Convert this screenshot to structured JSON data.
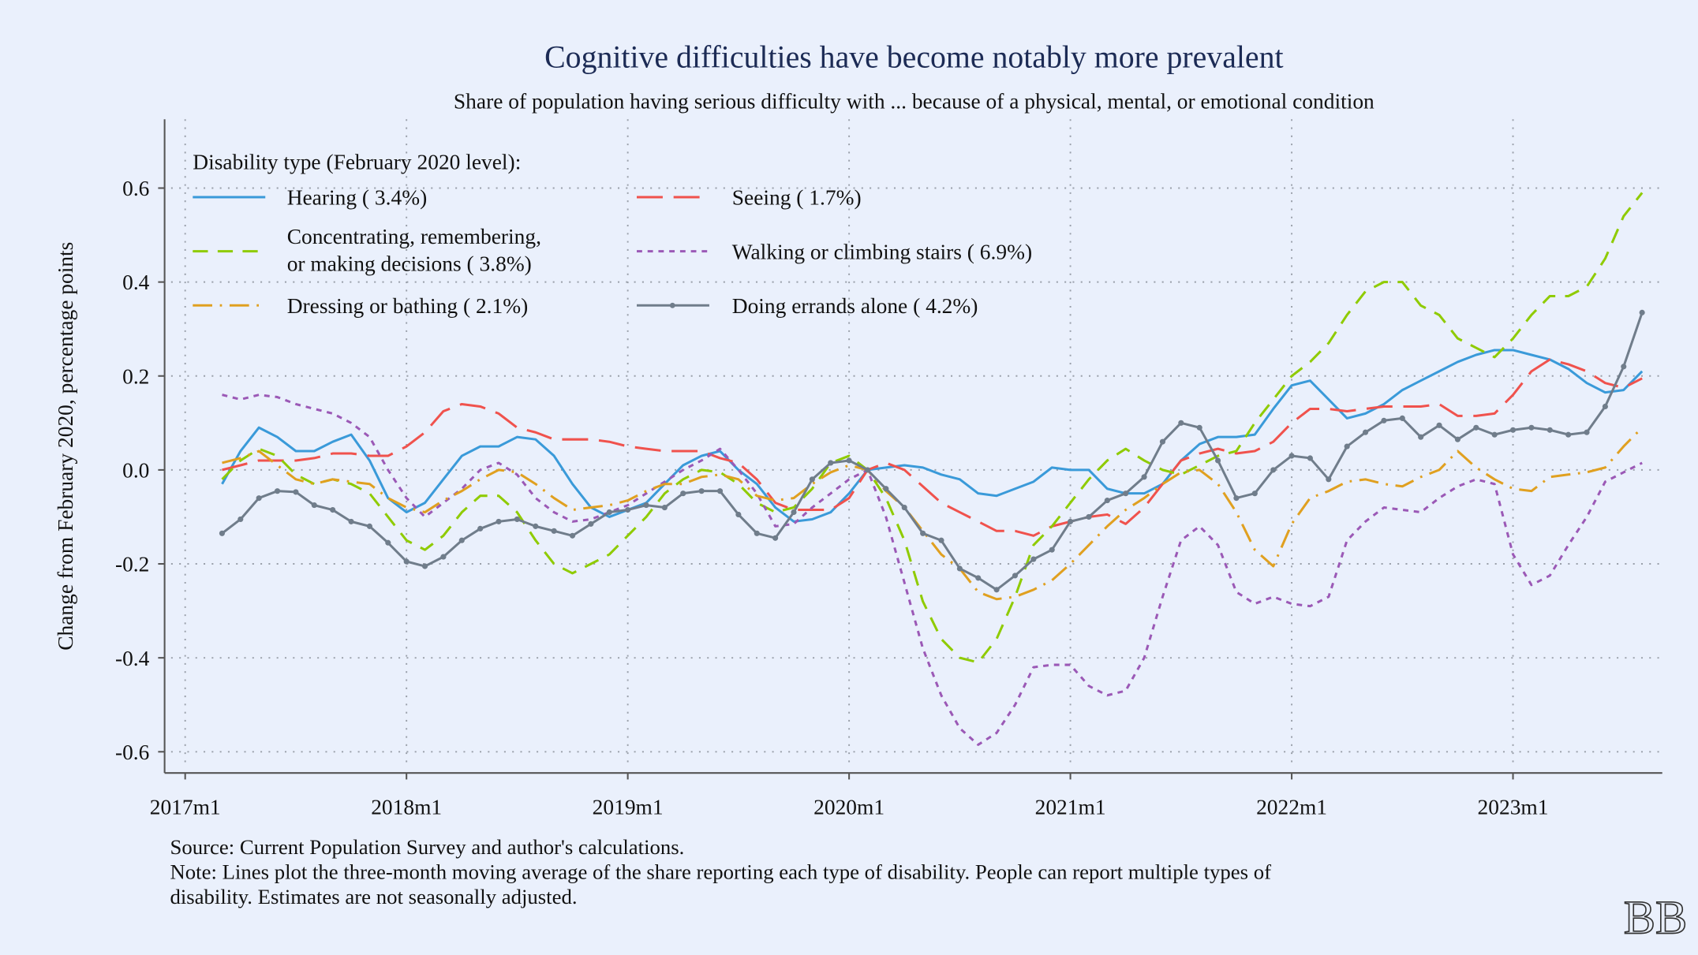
{
  "chart_data": {
    "type": "line",
    "title": "Cognitive difficulties have become notably more prevalent",
    "subtitle": "Share of population having serious difficulty with ... because of a physical, mental, or emotional condition",
    "ylabel": "Change from February 2020, percentage points",
    "xlabel": "",
    "ylim": [
      -0.65,
      0.75
    ],
    "yticks": [
      "0.6",
      "0.4",
      "0.2",
      "0.0",
      "-0.2",
      "-0.4",
      "-0.6"
    ],
    "ytick_values": [
      0.6,
      0.4,
      0.2,
      0.0,
      -0.2,
      -0.4,
      -0.6
    ],
    "xticks": [
      "2017m1",
      "2018m1",
      "2019m1",
      "2020m1",
      "2021m1",
      "2022m1",
      "2023m1"
    ],
    "grid": true,
    "legend_title": "Disability type (February 2020 level):",
    "legend_placement": "top-left",
    "x": [
      "2017m3",
      "2017m4",
      "2017m5",
      "2017m6",
      "2017m7",
      "2017m8",
      "2017m9",
      "2017m10",
      "2017m11",
      "2017m12",
      "2018m1",
      "2018m2",
      "2018m3",
      "2018m4",
      "2018m5",
      "2018m6",
      "2018m7",
      "2018m8",
      "2018m9",
      "2018m10",
      "2018m11",
      "2018m12",
      "2019m1",
      "2019m2",
      "2019m3",
      "2019m4",
      "2019m5",
      "2019m6",
      "2019m7",
      "2019m8",
      "2019m9",
      "2019m10",
      "2019m11",
      "2019m12",
      "2020m1",
      "2020m2",
      "2020m3",
      "2020m4",
      "2020m5",
      "2020m6",
      "2020m7",
      "2020m8",
      "2020m9",
      "2020m10",
      "2020m11",
      "2020m12",
      "2021m1",
      "2021m2",
      "2021m3",
      "2021m4",
      "2021m5",
      "2021m6",
      "2021m7",
      "2021m8",
      "2021m9",
      "2021m10",
      "2021m11",
      "2021m12",
      "2022m1",
      "2022m2",
      "2022m3",
      "2022m4",
      "2022m5",
      "2022m6",
      "2022m7",
      "2022m8",
      "2022m9",
      "2022m10",
      "2022m11",
      "2022m12",
      "2023m1",
      "2023m2",
      "2023m3",
      "2023m4",
      "2023m5",
      "2023m6",
      "2023m7",
      "2023m8"
    ],
    "series": [
      {
        "name": "Hearing ( 3.4%)",
        "color": "#3a9ad9",
        "style": "solid",
        "values": [
          -0.03,
          0.04,
          0.09,
          0.07,
          0.04,
          0.04,
          0.06,
          0.075,
          0.02,
          -0.06,
          -0.09,
          -0.07,
          -0.02,
          0.03,
          0.05,
          0.05,
          0.07,
          0.065,
          0.03,
          -0.03,
          -0.08,
          -0.1,
          -0.085,
          -0.07,
          -0.03,
          0.01,
          0.03,
          0.04,
          0.0,
          -0.03,
          -0.08,
          -0.11,
          -0.105,
          -0.09,
          -0.05,
          0.0,
          0.005,
          0.01,
          0.005,
          -0.01,
          -0.02,
          -0.05,
          -0.055,
          -0.04,
          -0.025,
          0.005,
          0.0,
          0.0,
          -0.04,
          -0.05,
          -0.05,
          -0.03,
          0.02,
          0.055,
          0.07,
          0.07,
          0.075,
          0.13,
          0.18,
          0.19,
          0.15,
          0.11,
          0.12,
          0.14,
          0.17,
          0.19,
          0.21,
          0.23,
          0.245,
          0.255,
          0.255,
          0.245,
          0.235,
          0.215,
          0.185,
          0.165,
          0.17,
          0.21
        ]
      },
      {
        "name": "Seeing ( 1.7%)",
        "color": "#f0524d",
        "style": "longdash",
        "values": [
          0.0,
          0.01,
          0.02,
          0.02,
          0.02,
          0.025,
          0.035,
          0.035,
          0.03,
          0.03,
          0.05,
          0.08,
          0.125,
          0.14,
          0.135,
          0.12,
          0.09,
          0.08,
          0.065,
          0.065,
          0.065,
          0.06,
          0.05,
          0.045,
          0.04,
          0.04,
          0.04,
          0.025,
          0.015,
          -0.02,
          -0.07,
          -0.085,
          -0.085,
          -0.085,
          -0.06,
          0.0,
          0.015,
          0.0,
          -0.035,
          -0.07,
          -0.09,
          -0.11,
          -0.13,
          -0.13,
          -0.14,
          -0.12,
          -0.11,
          -0.1,
          -0.095,
          -0.115,
          -0.08,
          -0.03,
          0.02,
          0.035,
          0.045,
          0.035,
          0.04,
          0.06,
          0.1,
          0.13,
          0.13,
          0.125,
          0.13,
          0.135,
          0.135,
          0.135,
          0.14,
          0.115,
          0.115,
          0.12,
          0.16,
          0.21,
          0.235,
          0.225,
          0.21,
          0.185,
          0.175,
          0.195
        ]
      },
      {
        "name": "Concentrating, remembering, or making decisions ( 3.8%)",
        "color": "#8fcb00",
        "style": "dash",
        "values": [
          -0.02,
          0.02,
          0.045,
          0.03,
          -0.01,
          -0.03,
          -0.02,
          -0.03,
          -0.05,
          -0.1,
          -0.15,
          -0.17,
          -0.14,
          -0.09,
          -0.055,
          -0.055,
          -0.09,
          -0.15,
          -0.2,
          -0.22,
          -0.2,
          -0.18,
          -0.14,
          -0.1,
          -0.05,
          -0.02,
          0.0,
          -0.005,
          -0.03,
          -0.07,
          -0.09,
          -0.08,
          -0.04,
          0.015,
          0.03,
          0.0,
          -0.06,
          -0.15,
          -0.28,
          -0.36,
          -0.4,
          -0.41,
          -0.36,
          -0.27,
          -0.16,
          -0.12,
          -0.07,
          -0.02,
          0.02,
          0.045,
          0.02,
          0.0,
          -0.01,
          0.01,
          0.03,
          0.04,
          0.1,
          0.15,
          0.2,
          0.23,
          0.27,
          0.33,
          0.38,
          0.4,
          0.4,
          0.35,
          0.33,
          0.28,
          0.26,
          0.24,
          0.28,
          0.33,
          0.37,
          0.37,
          0.39,
          0.45,
          0.54,
          0.59
        ]
      },
      {
        "name": "Walking or climbing stairs ( 6.9%)",
        "color": "#9b59b6",
        "style": "dot",
        "values": [
          0.16,
          0.15,
          0.16,
          0.155,
          0.14,
          0.13,
          0.12,
          0.1,
          0.07,
          0.0,
          -0.06,
          -0.1,
          -0.07,
          -0.04,
          0.0,
          0.015,
          -0.01,
          -0.06,
          -0.09,
          -0.11,
          -0.105,
          -0.09,
          -0.075,
          -0.05,
          -0.025,
          0.0,
          0.02,
          0.045,
          0.0,
          -0.05,
          -0.12,
          -0.115,
          -0.08,
          -0.05,
          -0.02,
          0.0,
          -0.1,
          -0.24,
          -0.38,
          -0.48,
          -0.55,
          -0.585,
          -0.56,
          -0.5,
          -0.42,
          -0.415,
          -0.415,
          -0.46,
          -0.48,
          -0.47,
          -0.4,
          -0.27,
          -0.15,
          -0.12,
          -0.16,
          -0.26,
          -0.285,
          -0.27,
          -0.285,
          -0.29,
          -0.27,
          -0.15,
          -0.11,
          -0.08,
          -0.085,
          -0.09,
          -0.06,
          -0.035,
          -0.02,
          -0.03,
          -0.18,
          -0.245,
          -0.225,
          -0.16,
          -0.1,
          -0.025,
          -0.005,
          0.015
        ]
      },
      {
        "name": "Dressing or bathing ( 2.1%)",
        "color": "#e0a020",
        "style": "dashdot",
        "values": [
          0.015,
          0.025,
          0.04,
          0.01,
          -0.02,
          -0.03,
          -0.02,
          -0.025,
          -0.03,
          -0.06,
          -0.08,
          -0.09,
          -0.065,
          -0.045,
          -0.02,
          0.0,
          -0.005,
          -0.03,
          -0.06,
          -0.085,
          -0.08,
          -0.075,
          -0.065,
          -0.045,
          -0.03,
          -0.03,
          -0.015,
          -0.01,
          -0.02,
          -0.055,
          -0.065,
          -0.06,
          -0.03,
          -0.005,
          0.01,
          0.0,
          -0.045,
          -0.08,
          -0.13,
          -0.18,
          -0.21,
          -0.26,
          -0.275,
          -0.27,
          -0.255,
          -0.235,
          -0.2,
          -0.16,
          -0.12,
          -0.085,
          -0.06,
          -0.03,
          -0.005,
          0.0,
          -0.03,
          -0.09,
          -0.17,
          -0.205,
          -0.115,
          -0.06,
          -0.045,
          -0.025,
          -0.02,
          -0.03,
          -0.035,
          -0.015,
          0.0,
          0.04,
          0.005,
          -0.02,
          -0.04,
          -0.045,
          -0.015,
          -0.01,
          -0.005,
          0.005,
          0.05,
          0.09
        ]
      },
      {
        "name": "Doing errands alone ( 4.2%)",
        "color": "#707d8b",
        "style": "solid-marker",
        "values": [
          -0.135,
          -0.105,
          -0.06,
          -0.045,
          -0.047,
          -0.075,
          -0.085,
          -0.11,
          -0.12,
          -0.155,
          -0.195,
          -0.205,
          -0.185,
          -0.15,
          -0.125,
          -0.11,
          -0.105,
          -0.12,
          -0.13,
          -0.14,
          -0.115,
          -0.09,
          -0.085,
          -0.075,
          -0.08,
          -0.05,
          -0.045,
          -0.045,
          -0.095,
          -0.135,
          -0.145,
          -0.09,
          -0.02,
          0.015,
          0.02,
          0.0,
          -0.04,
          -0.08,
          -0.135,
          -0.15,
          -0.21,
          -0.23,
          -0.255,
          -0.225,
          -0.19,
          -0.17,
          -0.11,
          -0.1,
          -0.065,
          -0.05,
          -0.015,
          0.06,
          0.1,
          0.09,
          0.02,
          -0.06,
          -0.05,
          0.0,
          0.03,
          0.025,
          -0.02,
          0.05,
          0.08,
          0.105,
          0.11,
          0.07,
          0.095,
          0.065,
          0.09,
          0.075,
          0.085,
          0.09,
          0.085,
          0.075,
          0.08,
          0.135,
          0.22,
          0.335
        ]
      }
    ]
  },
  "legend": {
    "hearing": "Hearing ( 3.4%)",
    "seeing": "Seeing ( 1.7%)",
    "concentrating_line1": "Concentrating, remembering,",
    "concentrating_line2": "or making decisions ( 3.8%)",
    "walking": "Walking or climbing stairs ( 6.9%)",
    "dressing": "Dressing or bathing ( 2.1%)",
    "errands": "Doing errands alone ( 4.2%)"
  },
  "footer": {
    "source": "Source: Current Population Survey and author's calculations.",
    "note_line1": "Note: Lines plot the three-month moving average of the share reporting each type of disability. People can report multiple types of",
    "note_line2": "disability. Estimates are not seasonally adjusted."
  },
  "logo": {
    "text": "BB"
  },
  "colors": {
    "background": "#eaf0fc",
    "title": "#1c2b55"
  }
}
